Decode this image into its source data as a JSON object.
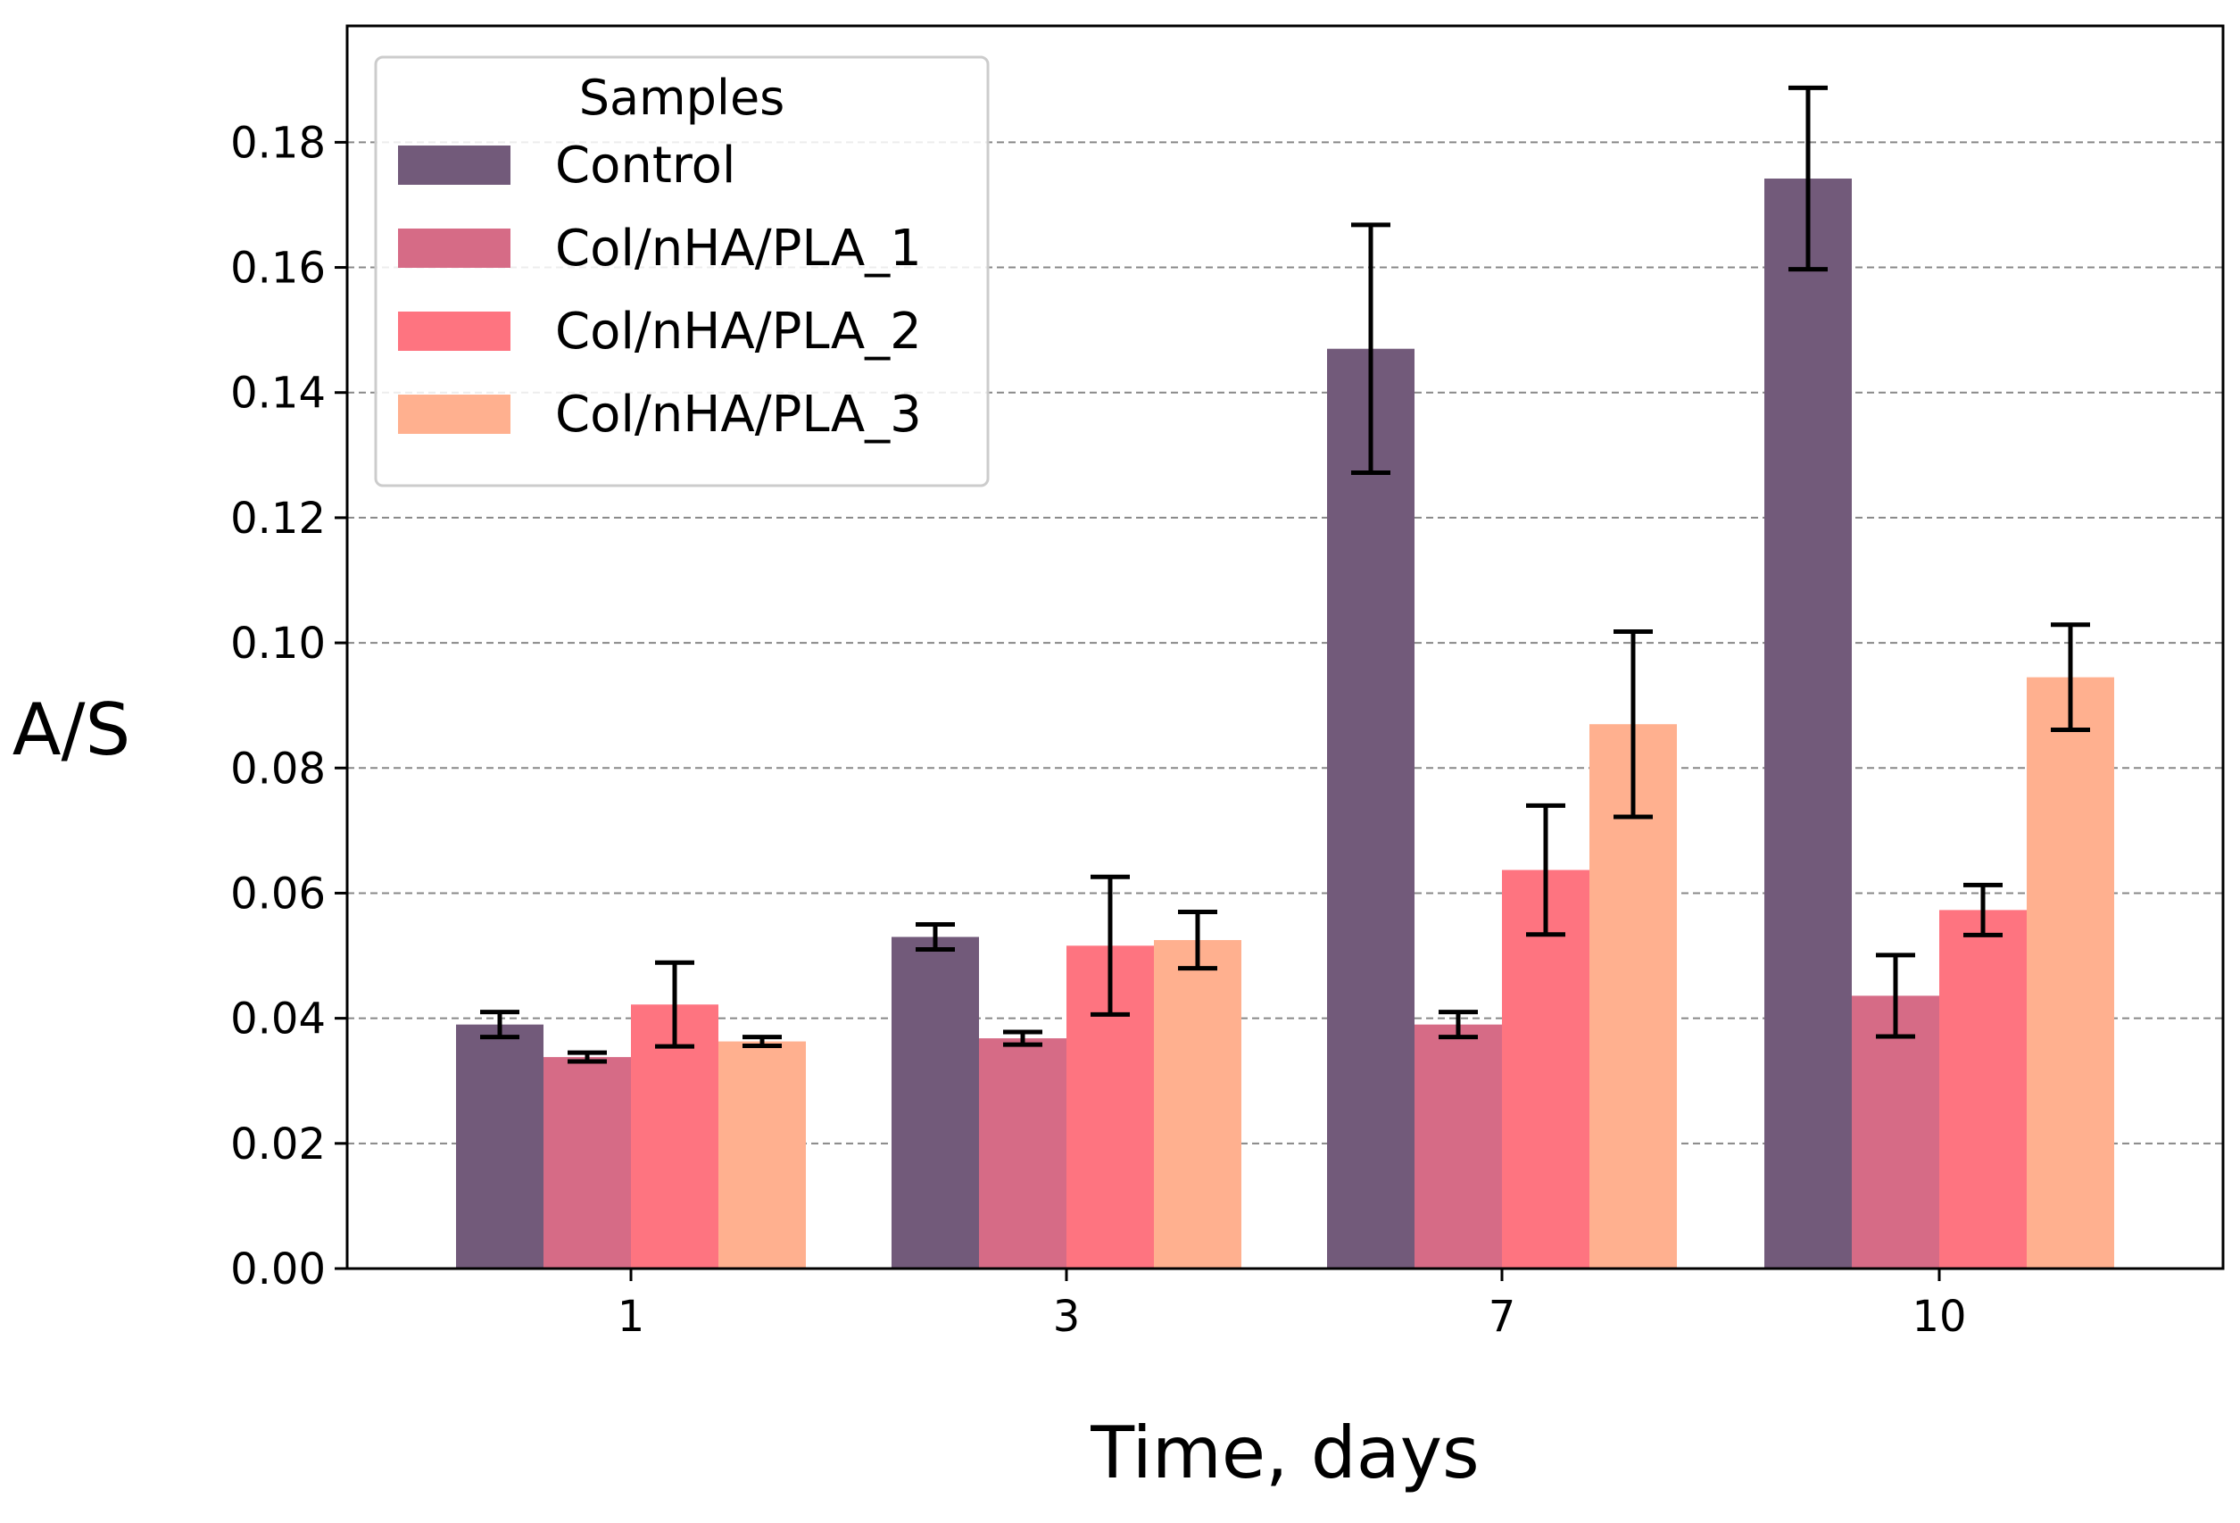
{
  "chart_data": {
    "type": "bar",
    "title": "",
    "xlabel": "Time, days",
    "ylabel": "A/S",
    "categories": [
      "1",
      "3",
      "7",
      "10"
    ],
    "ylim": [
      0,
      0.1986
    ],
    "yticks": [
      "0.00",
      "0.02",
      "0.04",
      "0.06",
      "0.08",
      "0.10",
      "0.12",
      "0.14",
      "0.16",
      "0.18"
    ],
    "grid": "horizontal dashed",
    "legend": {
      "title": "Samples",
      "placement": "top-left"
    },
    "series": [
      {
        "name": "Control",
        "color": "#725a7a",
        "values": [
          0.039,
          0.053,
          0.147,
          0.1742
        ],
        "errors": [
          0.002,
          0.002,
          0.0198,
          0.0145
        ]
      },
      {
        "name": "Col/nHA/PLA_1",
        "color": "#d66b86",
        "values": [
          0.0338,
          0.0368,
          0.039,
          0.0436
        ],
        "errors": [
          0.0007,
          0.001,
          0.002,
          0.0065
        ]
      },
      {
        "name": "Col/nHA/PLA_2",
        "color": "#fe7480",
        "values": [
          0.0422,
          0.0516,
          0.0637,
          0.0573
        ],
        "errors": [
          0.0067,
          0.011,
          0.0103,
          0.004
        ]
      },
      {
        "name": "Col/nHA/PLA_3",
        "color": "#ffb08f",
        "values": [
          0.0363,
          0.0525,
          0.087,
          0.0945
        ],
        "errors": [
          0.0007,
          0.0045,
          0.0148,
          0.0084
        ]
      }
    ]
  }
}
